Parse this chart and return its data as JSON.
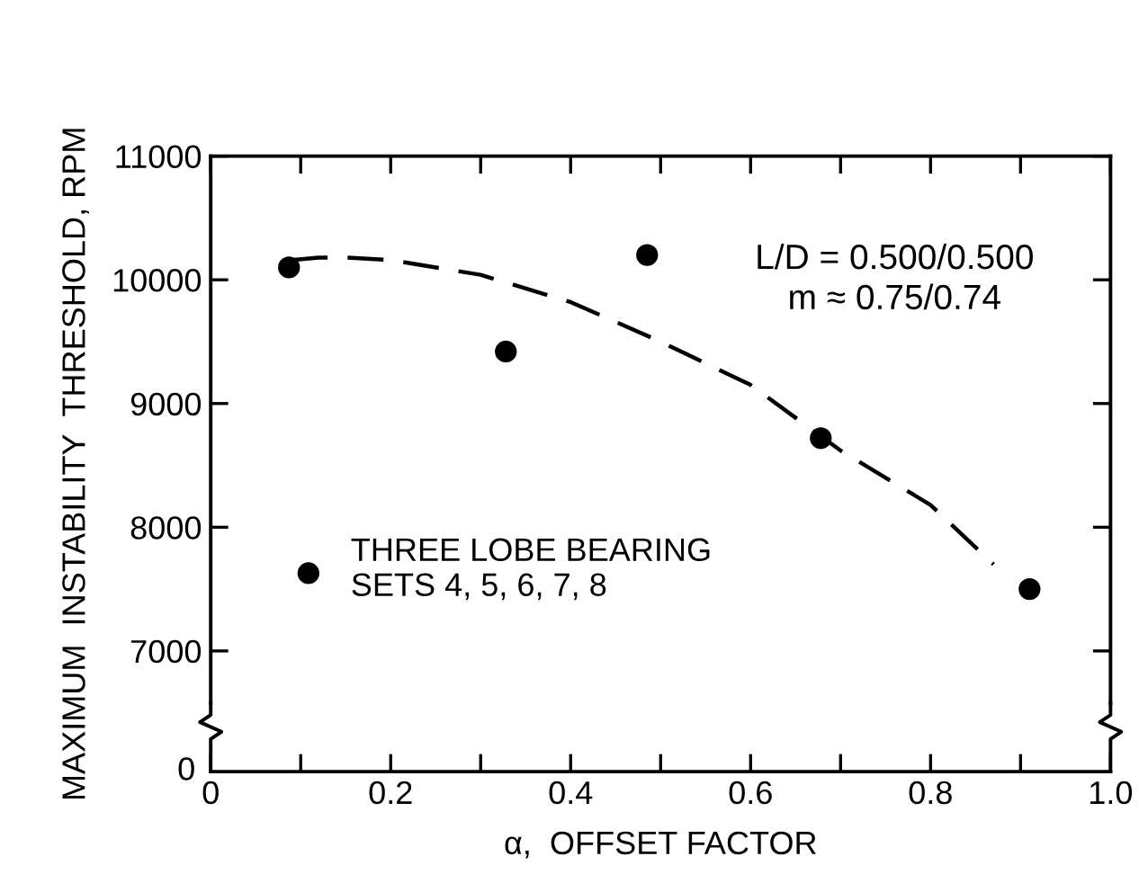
{
  "chart_data": {
    "type": "scatter",
    "xlabel": "α,  OFFSET FACTOR",
    "ylabel": "MAXIMUM  INSTABILITY  THRESHOLD, RPM",
    "xlim": [
      0,
      1.0
    ],
    "ylim": [
      6580,
      11000
    ],
    "xticks": [
      0,
      {
        "value": 0.1,
        "label": null
      },
      0.2,
      {
        "value": 0.3,
        "label": null
      },
      0.4,
      {
        "value": 0.5,
        "label": null
      },
      0.6,
      {
        "value": 0.7,
        "label": null
      },
      0.8,
      {
        "value": 0.9,
        "label": null
      },
      {
        "value": 1.0,
        "label": "1.0"
      }
    ],
    "yticks": [
      7000,
      8000,
      9000,
      10000,
      11000
    ],
    "annotations": [
      "L/D = 0.500/0.500\nm ≈ 0.75/0.74",
      "0"
    ],
    "legend": "bottom left",
    "grid": false,
    "marker": "circle",
    "series": [
      {
        "name": "THREE LOBE BEARING\nSETS 4, 5, 6, 7, 8",
        "color": "#000000",
        "x": [
          0.087,
          0.328,
          0.485,
          0.678,
          0.91
        ],
        "values": [
          10100,
          9420,
          10200,
          8720,
          7500
        ]
      },
      {
        "type": "line",
        "line_style": "dashed",
        "marker": "none",
        "color": "#000000",
        "x": [
          0.09,
          0.12,
          0.15,
          0.2,
          0.3,
          0.4,
          0.5,
          0.6,
          0.7,
          0.8,
          0.87
        ],
        "values": [
          10160,
          10180,
          10180,
          10160,
          10040,
          9820,
          9500,
          9150,
          8620,
          8180,
          7700
        ]
      }
    ]
  }
}
